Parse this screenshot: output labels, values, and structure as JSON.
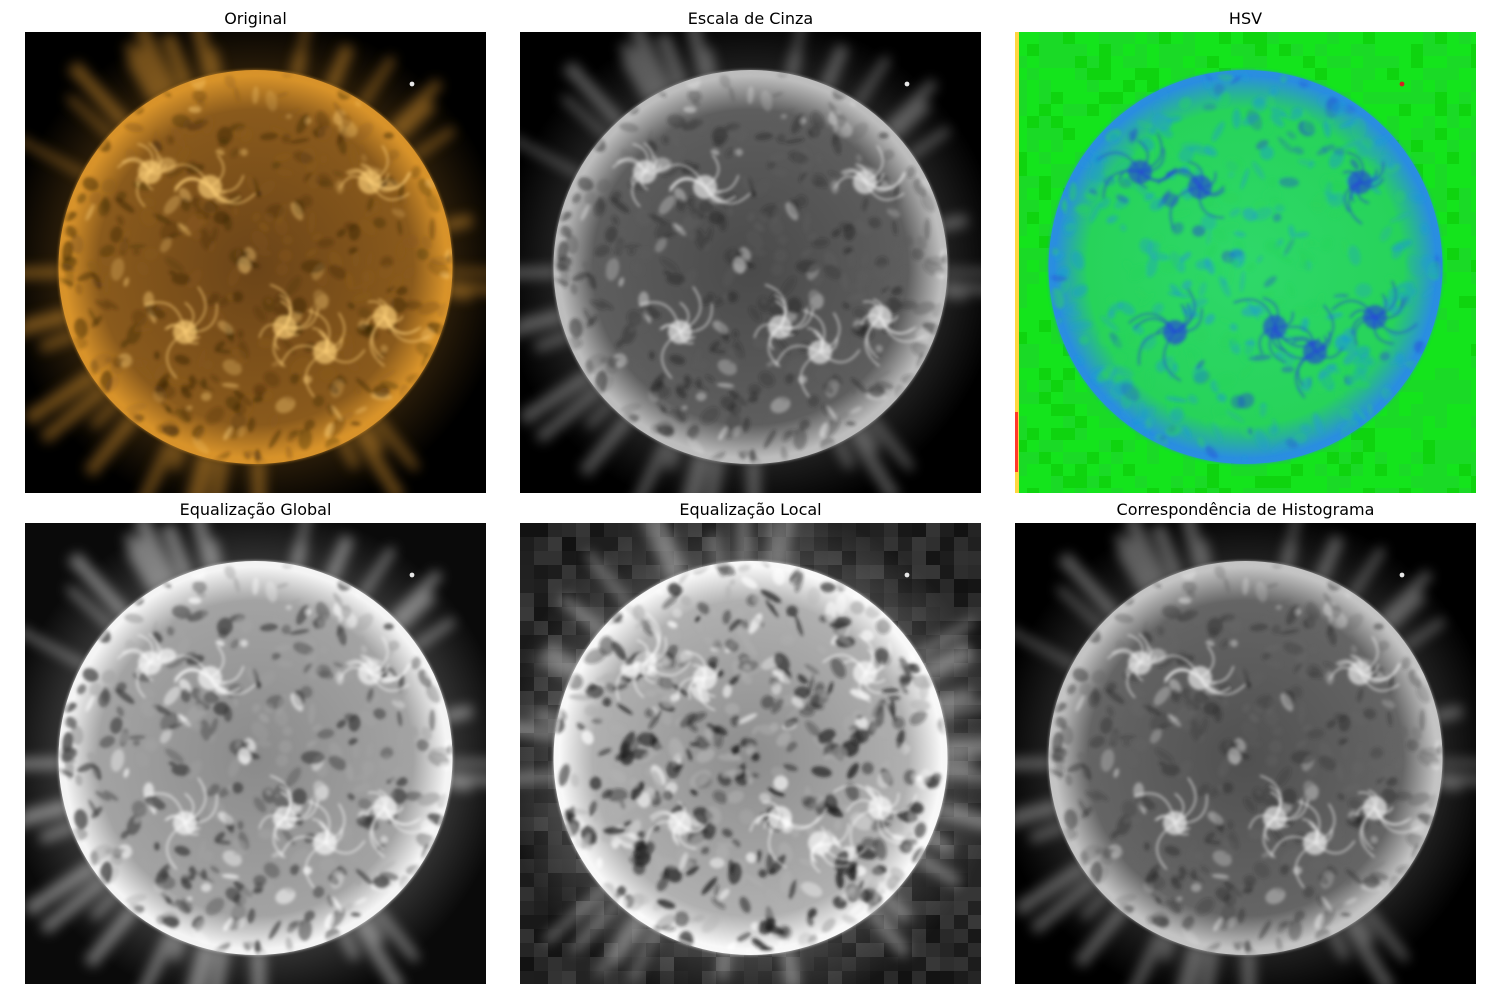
{
  "panels": [
    {
      "title": "Original",
      "variant": "original",
      "colors": {
        "bg": "#000000",
        "core": "#6b4418",
        "mid": "#8a5a1c",
        "limb": "#d8932a",
        "glow": "#c98a2e",
        "spot": "#ffd27a",
        "dark": "#3a2508"
      }
    },
    {
      "title": "Escala de Cinza",
      "variant": "gray",
      "colors": {
        "bg": "#000000",
        "core": "#4a4a4a",
        "mid": "#5e5e5e",
        "limb": "#bdbdbd",
        "glow": "#9a9a9a",
        "spot": "#f0f0f0",
        "dark": "#262626"
      }
    },
    {
      "title": "HSV",
      "variant": "hsv",
      "colors": {
        "bg": "#0fe81a",
        "core": "#2fd86a",
        "mid": "#27d35a",
        "limb": "#2a8ee0",
        "glow": "#1ed63a",
        "spot": "#2246d8",
        "dark": "#1d9ad8"
      }
    },
    {
      "title": "Equalização Global",
      "variant": "eqglobal",
      "colors": {
        "bg": "#0a0a0a",
        "core": "#8a8a8a",
        "mid": "#a3a3a3",
        "limb": "#f4f4f4",
        "glow": "#d0d0d0",
        "spot": "#ffffff",
        "dark": "#3a3a3a"
      }
    },
    {
      "title": "Equalização Local",
      "variant": "eqlocal",
      "colors": {
        "bg": "#1a1a1a",
        "core": "#8c8c8c",
        "mid": "#b0b0b0",
        "limb": "#f8f8f8",
        "glow": "#bcbcbc",
        "spot": "#ffffff",
        "dark": "#1e1e1e"
      }
    },
    {
      "title": "Correspondência de Histograma",
      "variant": "histmatch",
      "colors": {
        "bg": "#000000",
        "core": "#505050",
        "mid": "#656565",
        "limb": "#c4c4c4",
        "glow": "#a0a0a0",
        "spot": "#f2f2f2",
        "dark": "#2a2a2a"
      }
    }
  ]
}
